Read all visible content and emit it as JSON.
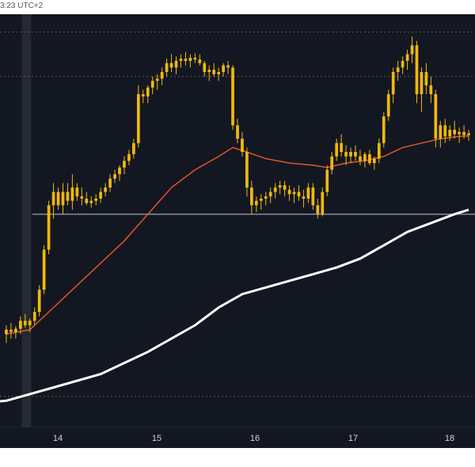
{
  "header": {
    "timestamp": "3:23 UTC+2"
  },
  "colors": {
    "background": "#131722",
    "candle": "#f0b90b",
    "ma_short": "#e2561f",
    "ma_long": "#ffffff",
    "support_line": "#8a8fa0",
    "dotted_lines": "#6b5a3a",
    "highlight_band": "#2a2e39",
    "axis_text": "#d1d4dc"
  },
  "chart_data": {
    "type": "candlestick",
    "x_tick_labels": [
      "14",
      "15",
      "16",
      "17",
      "18"
    ],
    "highlighted_day": "14",
    "grid": false,
    "candles": [
      [
        0,
        0.36,
        0.38,
        0.34,
        0.37
      ],
      [
        1,
        0.37,
        0.385,
        0.35,
        0.365
      ],
      [
        2,
        0.365,
        0.378,
        0.35,
        0.372
      ],
      [
        3,
        0.372,
        0.4,
        0.36,
        0.39
      ],
      [
        4,
        0.39,
        0.405,
        0.375,
        0.38
      ],
      [
        5,
        0.38,
        0.395,
        0.365,
        0.39
      ],
      [
        6,
        0.39,
        0.42,
        0.38,
        0.41
      ],
      [
        7,
        0.41,
        0.47,
        0.4,
        0.46
      ],
      [
        8,
        0.46,
        0.56,
        0.45,
        0.55
      ],
      [
        9,
        0.55,
        0.66,
        0.54,
        0.65
      ],
      [
        10,
        0.65,
        0.7,
        0.62,
        0.68
      ],
      [
        11,
        0.68,
        0.69,
        0.64,
        0.65
      ],
      [
        12,
        0.65,
        0.7,
        0.63,
        0.68
      ],
      [
        13,
        0.68,
        0.7,
        0.65,
        0.66
      ],
      [
        14,
        0.66,
        0.72,
        0.64,
        0.69
      ],
      [
        15,
        0.69,
        0.7,
        0.66,
        0.67
      ],
      [
        16,
        0.67,
        0.69,
        0.65,
        0.665
      ],
      [
        17,
        0.665,
        0.68,
        0.65,
        0.655
      ],
      [
        18,
        0.655,
        0.67,
        0.645,
        0.66
      ],
      [
        19,
        0.66,
        0.675,
        0.65,
        0.665
      ],
      [
        20,
        0.665,
        0.69,
        0.655,
        0.68
      ],
      [
        21,
        0.68,
        0.7,
        0.67,
        0.69
      ],
      [
        22,
        0.69,
        0.72,
        0.68,
        0.71
      ],
      [
        23,
        0.71,
        0.73,
        0.7,
        0.72
      ],
      [
        24,
        0.72,
        0.74,
        0.705,
        0.735
      ],
      [
        25,
        0.735,
        0.76,
        0.72,
        0.75
      ],
      [
        26,
        0.75,
        0.775,
        0.74,
        0.765
      ],
      [
        27,
        0.765,
        0.8,
        0.755,
        0.79
      ],
      [
        28,
        0.79,
        0.92,
        0.78,
        0.9
      ],
      [
        29,
        0.9,
        0.91,
        0.88,
        0.895
      ],
      [
        30,
        0.895,
        0.92,
        0.88,
        0.915
      ],
      [
        31,
        0.915,
        0.94,
        0.9,
        0.93
      ],
      [
        32,
        0.93,
        0.945,
        0.91,
        0.935
      ],
      [
        33,
        0.935,
        0.96,
        0.92,
        0.95
      ],
      [
        34,
        0.95,
        0.98,
        0.94,
        0.97
      ],
      [
        35,
        0.97,
        0.99,
        0.95,
        0.96
      ],
      [
        36,
        0.96,
        0.985,
        0.945,
        0.975
      ],
      [
        37,
        0.975,
        0.99,
        0.96,
        0.98
      ],
      [
        38,
        0.98,
        0.995,
        0.965,
        0.975
      ],
      [
        39,
        0.975,
        0.99,
        0.96,
        0.982
      ],
      [
        40,
        0.982,
        0.992,
        0.97,
        0.978
      ],
      [
        41,
        0.978,
        0.99,
        0.965,
        0.97
      ],
      [
        42,
        0.97,
        0.975,
        0.94,
        0.95
      ],
      [
        43,
        0.95,
        0.965,
        0.93,
        0.955
      ],
      [
        44,
        0.955,
        0.97,
        0.94,
        0.945
      ],
      [
        45,
        0.945,
        0.96,
        0.93,
        0.95
      ],
      [
        46,
        0.95,
        0.97,
        0.94,
        0.965
      ],
      [
        47,
        0.965,
        0.975,
        0.945,
        0.96
      ],
      [
        48,
        0.96,
        0.965,
        0.82,
        0.83
      ],
      [
        49,
        0.83,
        0.845,
        0.79,
        0.8
      ],
      [
        50,
        0.8,
        0.815,
        0.76,
        0.77
      ],
      [
        51,
        0.77,
        0.78,
        0.67,
        0.69
      ],
      [
        52,
        0.69,
        0.705,
        0.63,
        0.65
      ],
      [
        53,
        0.65,
        0.67,
        0.635,
        0.66
      ],
      [
        54,
        0.66,
        0.675,
        0.64,
        0.665
      ],
      [
        55,
        0.665,
        0.68,
        0.65,
        0.67
      ],
      [
        56,
        0.67,
        0.69,
        0.655,
        0.68
      ],
      [
        57,
        0.68,
        0.7,
        0.665,
        0.69
      ],
      [
        58,
        0.69,
        0.705,
        0.675,
        0.695
      ],
      [
        59,
        0.695,
        0.705,
        0.67,
        0.685
      ],
      [
        60,
        0.685,
        0.695,
        0.66,
        0.675
      ],
      [
        61,
        0.675,
        0.69,
        0.655,
        0.68
      ],
      [
        62,
        0.68,
        0.695,
        0.66,
        0.67
      ],
      [
        63,
        0.67,
        0.685,
        0.645,
        0.665
      ],
      [
        64,
        0.665,
        0.7,
        0.655,
        0.69
      ],
      [
        65,
        0.69,
        0.7,
        0.64,
        0.65
      ],
      [
        66,
        0.65,
        0.665,
        0.62,
        0.63
      ],
      [
        67,
        0.63,
        0.69,
        0.625,
        0.68
      ],
      [
        68,
        0.68,
        0.74,
        0.67,
        0.73
      ],
      [
        69,
        0.73,
        0.77,
        0.72,
        0.76
      ],
      [
        70,
        0.76,
        0.8,
        0.75,
        0.79
      ],
      [
        71,
        0.79,
        0.81,
        0.76,
        0.77
      ],
      [
        72,
        0.77,
        0.785,
        0.74,
        0.76
      ],
      [
        73,
        0.76,
        0.78,
        0.745,
        0.77
      ],
      [
        74,
        0.77,
        0.785,
        0.75,
        0.76
      ],
      [
        75,
        0.76,
        0.775,
        0.74,
        0.75
      ],
      [
        76,
        0.75,
        0.77,
        0.735,
        0.765
      ],
      [
        77,
        0.765,
        0.775,
        0.74,
        0.745
      ],
      [
        78,
        0.745,
        0.76,
        0.73,
        0.755
      ],
      [
        79,
        0.755,
        0.8,
        0.745,
        0.79
      ],
      [
        80,
        0.79,
        0.86,
        0.78,
        0.85
      ],
      [
        81,
        0.85,
        0.91,
        0.84,
        0.9
      ],
      [
        82,
        0.9,
        0.96,
        0.88,
        0.95
      ],
      [
        83,
        0.95,
        0.975,
        0.93,
        0.96
      ],
      [
        84,
        0.96,
        0.985,
        0.945,
        0.975
      ],
      [
        85,
        0.975,
        1.0,
        0.955,
        0.99
      ],
      [
        86,
        0.99,
        1.03,
        0.97,
        1.01
      ],
      [
        87,
        1.01,
        1.02,
        0.88,
        0.9
      ],
      [
        88,
        0.9,
        0.96,
        0.86,
        0.95
      ],
      [
        89,
        0.95,
        0.97,
        0.9,
        0.92
      ],
      [
        90,
        0.92,
        0.94,
        0.88,
        0.9
      ],
      [
        91,
        0.9,
        0.91,
        0.78,
        0.8
      ],
      [
        92,
        0.8,
        0.84,
        0.78,
        0.83
      ],
      [
        93,
        0.83,
        0.845,
        0.79,
        0.805
      ],
      [
        94,
        0.805,
        0.83,
        0.795,
        0.82
      ],
      [
        95,
        0.82,
        0.84,
        0.8,
        0.81
      ],
      [
        96,
        0.81,
        0.825,
        0.79,
        0.815
      ],
      [
        97,
        0.815,
        0.83,
        0.8,
        0.808
      ],
      [
        98,
        0.808,
        0.82,
        0.795,
        0.812
      ]
    ],
    "ma_short": [
      [
        0,
        0.36
      ],
      [
        5,
        0.37
      ],
      [
        10,
        0.42
      ],
      [
        15,
        0.47
      ],
      [
        20,
        0.52
      ],
      [
        25,
        0.57
      ],
      [
        30,
        0.63
      ],
      [
        35,
        0.69
      ],
      [
        40,
        0.73
      ],
      [
        45,
        0.76
      ],
      [
        48,
        0.78
      ],
      [
        51,
        0.77
      ],
      [
        55,
        0.755
      ],
      [
        60,
        0.745
      ],
      [
        65,
        0.74
      ],
      [
        68,
        0.735
      ],
      [
        72,
        0.745
      ],
      [
        76,
        0.75
      ],
      [
        80,
        0.76
      ],
      [
        84,
        0.78
      ],
      [
        88,
        0.79
      ],
      [
        92,
        0.8
      ],
      [
        96,
        0.805
      ],
      [
        98,
        0.806
      ]
    ],
    "ma_long": [
      [
        -10,
        0.2
      ],
      [
        0,
        0.21
      ],
      [
        10,
        0.24
      ],
      [
        20,
        0.27
      ],
      [
        30,
        0.32
      ],
      [
        40,
        0.38
      ],
      [
        45,
        0.42
      ],
      [
        50,
        0.45
      ],
      [
        55,
        0.465
      ],
      [
        60,
        0.48
      ],
      [
        65,
        0.495
      ],
      [
        70,
        0.51
      ],
      [
        75,
        0.53
      ],
      [
        80,
        0.56
      ],
      [
        85,
        0.59
      ],
      [
        90,
        0.61
      ],
      [
        95,
        0.63
      ],
      [
        98,
        0.64
      ]
    ],
    "support_level": 0.63,
    "dotted_levels": [
      1.04,
      0.94,
      0.22
    ]
  }
}
